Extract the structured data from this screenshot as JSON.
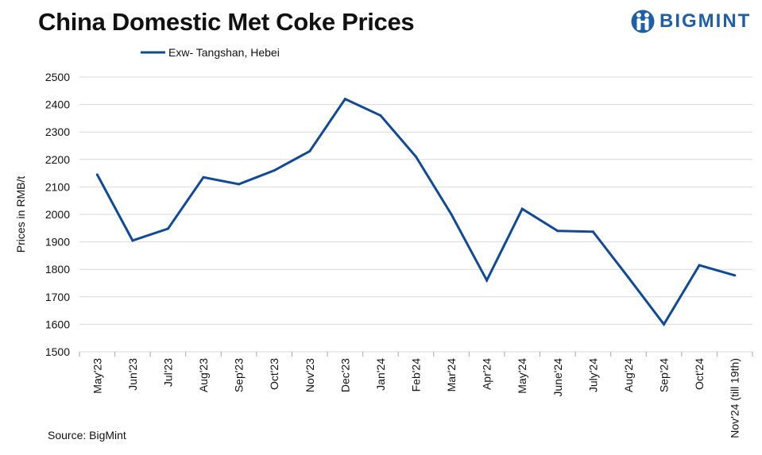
{
  "header": {
    "title": "China Domestic Met Coke Prices",
    "logo_text": "BIGMINT"
  },
  "footer": {
    "source": "Source: BigMint"
  },
  "colors": {
    "series": "#0e4a99",
    "grid": "#d9d9d9",
    "text": "#111111",
    "brand": "#1f5fa8"
  },
  "chart_data": {
    "type": "line",
    "title": "China Domestic Met Coke Prices",
    "xlabel": "",
    "ylabel": "Prices in RMB/t",
    "ylim": [
      1500,
      2500
    ],
    "yticks": [
      1500,
      1600,
      1700,
      1800,
      1900,
      2000,
      2100,
      2200,
      2300,
      2400,
      2500
    ],
    "grid": true,
    "legend_position": "top-left",
    "categories": [
      "May'23",
      "Jun'23",
      "Jul'23",
      "Aug'23",
      "Sep'23",
      "Oct'23",
      "Nov'23",
      "Dec'23",
      "Jan'24",
      "Feb'24",
      "Mar'24",
      "Apr'24",
      "May'24",
      "June'24",
      "July'24",
      "Aug'24",
      "Sep'24",
      "Oct'24",
      "Nov'24 (till 19th)"
    ],
    "series": [
      {
        "name": "Exw- Tangshan, Hebei",
        "values": [
          2145,
          1905,
          1948,
          2135,
          2110,
          2160,
          2230,
          2420,
          2360,
          2210,
          2000,
          1760,
          2020,
          1940,
          1937,
          1770,
          1600,
          1815,
          1778
        ]
      }
    ]
  }
}
